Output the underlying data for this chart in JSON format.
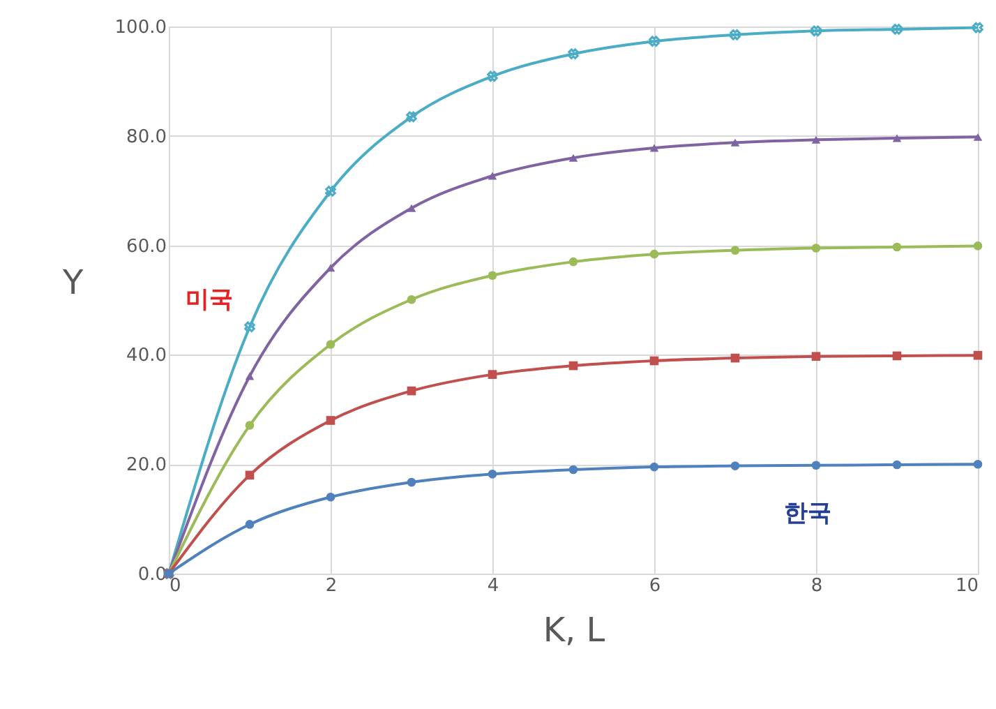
{
  "chart_data": {
    "type": "line",
    "xlabel": "K, L",
    "ylabel": "Y",
    "x": [
      0,
      1,
      2,
      3,
      4,
      5,
      6,
      7,
      8,
      9,
      10
    ],
    "series": [
      {
        "color": "#4bacc6",
        "marker": "cross",
        "values": [
          0,
          45.1,
          69.9,
          83.5,
          90.9,
          95.0,
          97.3,
          98.5,
          99.2,
          99.5,
          99.8
        ]
      },
      {
        "color": "#8064a2",
        "marker": "triangle",
        "values": [
          0,
          36.1,
          55.9,
          66.8,
          72.7,
          76.0,
          77.8,
          78.8,
          79.3,
          79.6,
          79.8
        ]
      },
      {
        "color": "#9bbb59",
        "marker": "circle",
        "values": [
          0,
          27.1,
          41.9,
          50.1,
          54.5,
          57.0,
          58.4,
          59.1,
          59.5,
          59.7,
          59.9
        ]
      },
      {
        "color": "#c0504d",
        "marker": "square",
        "values": [
          0,
          18.0,
          28.0,
          33.4,
          36.4,
          38.0,
          38.9,
          39.4,
          39.7,
          39.8,
          39.9
        ]
      },
      {
        "color": "#4f81bd",
        "marker": "circle",
        "values": [
          0,
          9.0,
          14.0,
          16.7,
          18.2,
          19.0,
          19.5,
          19.7,
          19.8,
          19.9,
          20.0
        ]
      }
    ],
    "xlim": [
      0,
      10
    ],
    "xticks": [
      0,
      2,
      4,
      6,
      8,
      10
    ],
    "ylim": [
      0,
      100
    ],
    "yticks": [
      {
        "value": 0,
        "label": "0.0"
      },
      {
        "value": 20,
        "label": "20.0"
      },
      {
        "value": 40,
        "label": "40.0"
      },
      {
        "value": 60,
        "label": "60.0"
      },
      {
        "value": 80,
        "label": "80.0"
      },
      {
        "value": 100,
        "label": "100.0"
      }
    ],
    "grid": true,
    "annotations": [
      "미국",
      "한국"
    ]
  }
}
